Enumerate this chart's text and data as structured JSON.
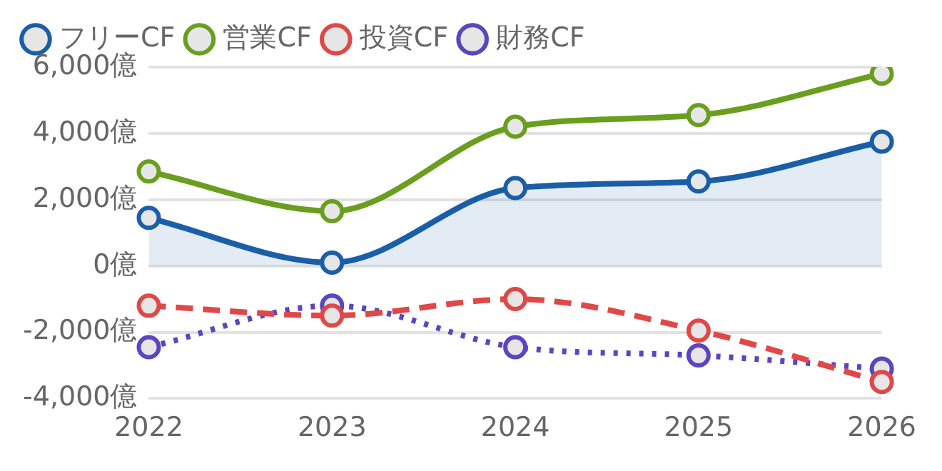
{
  "chart_data": {
    "type": "line",
    "categories": [
      "2022",
      "2023",
      "2024",
      "2025",
      "2026"
    ],
    "series": [
      {
        "name": "フリーCF",
        "type": "area",
        "color": "#1a5ea8",
        "values": [
          1450,
          100,
          2350,
          2550,
          3750
        ]
      },
      {
        "name": "営業CF",
        "color": "#6a9e1f",
        "values": [
          2850,
          1650,
          4200,
          4550,
          5800
        ]
      },
      {
        "name": "投資CF",
        "color": "#e04848",
        "line_style": "dashed",
        "values": [
          -1200,
          -1500,
          -1000,
          -1950,
          -3500
        ]
      },
      {
        "name": "財務CF",
        "color": "#5b45c0",
        "line_style": "dotted",
        "values": [
          -2450,
          -1200,
          -2450,
          -2700,
          -3100
        ]
      }
    ],
    "ylim": [
      -4000,
      6000
    ],
    "yticks": [
      {
        "value": -4000,
        "label": "-4,000億"
      },
      {
        "value": -2000,
        "label": "-2,000億"
      },
      {
        "value": 0,
        "label": "0億"
      },
      {
        "value": 2000,
        "label": "2,000億"
      },
      {
        "value": 4000,
        "label": "4,000億"
      },
      {
        "value": 6000,
        "label": "6,000億"
      }
    ],
    "grid": "y",
    "legend": "top",
    "marker": "circle",
    "line_style": "solid"
  }
}
